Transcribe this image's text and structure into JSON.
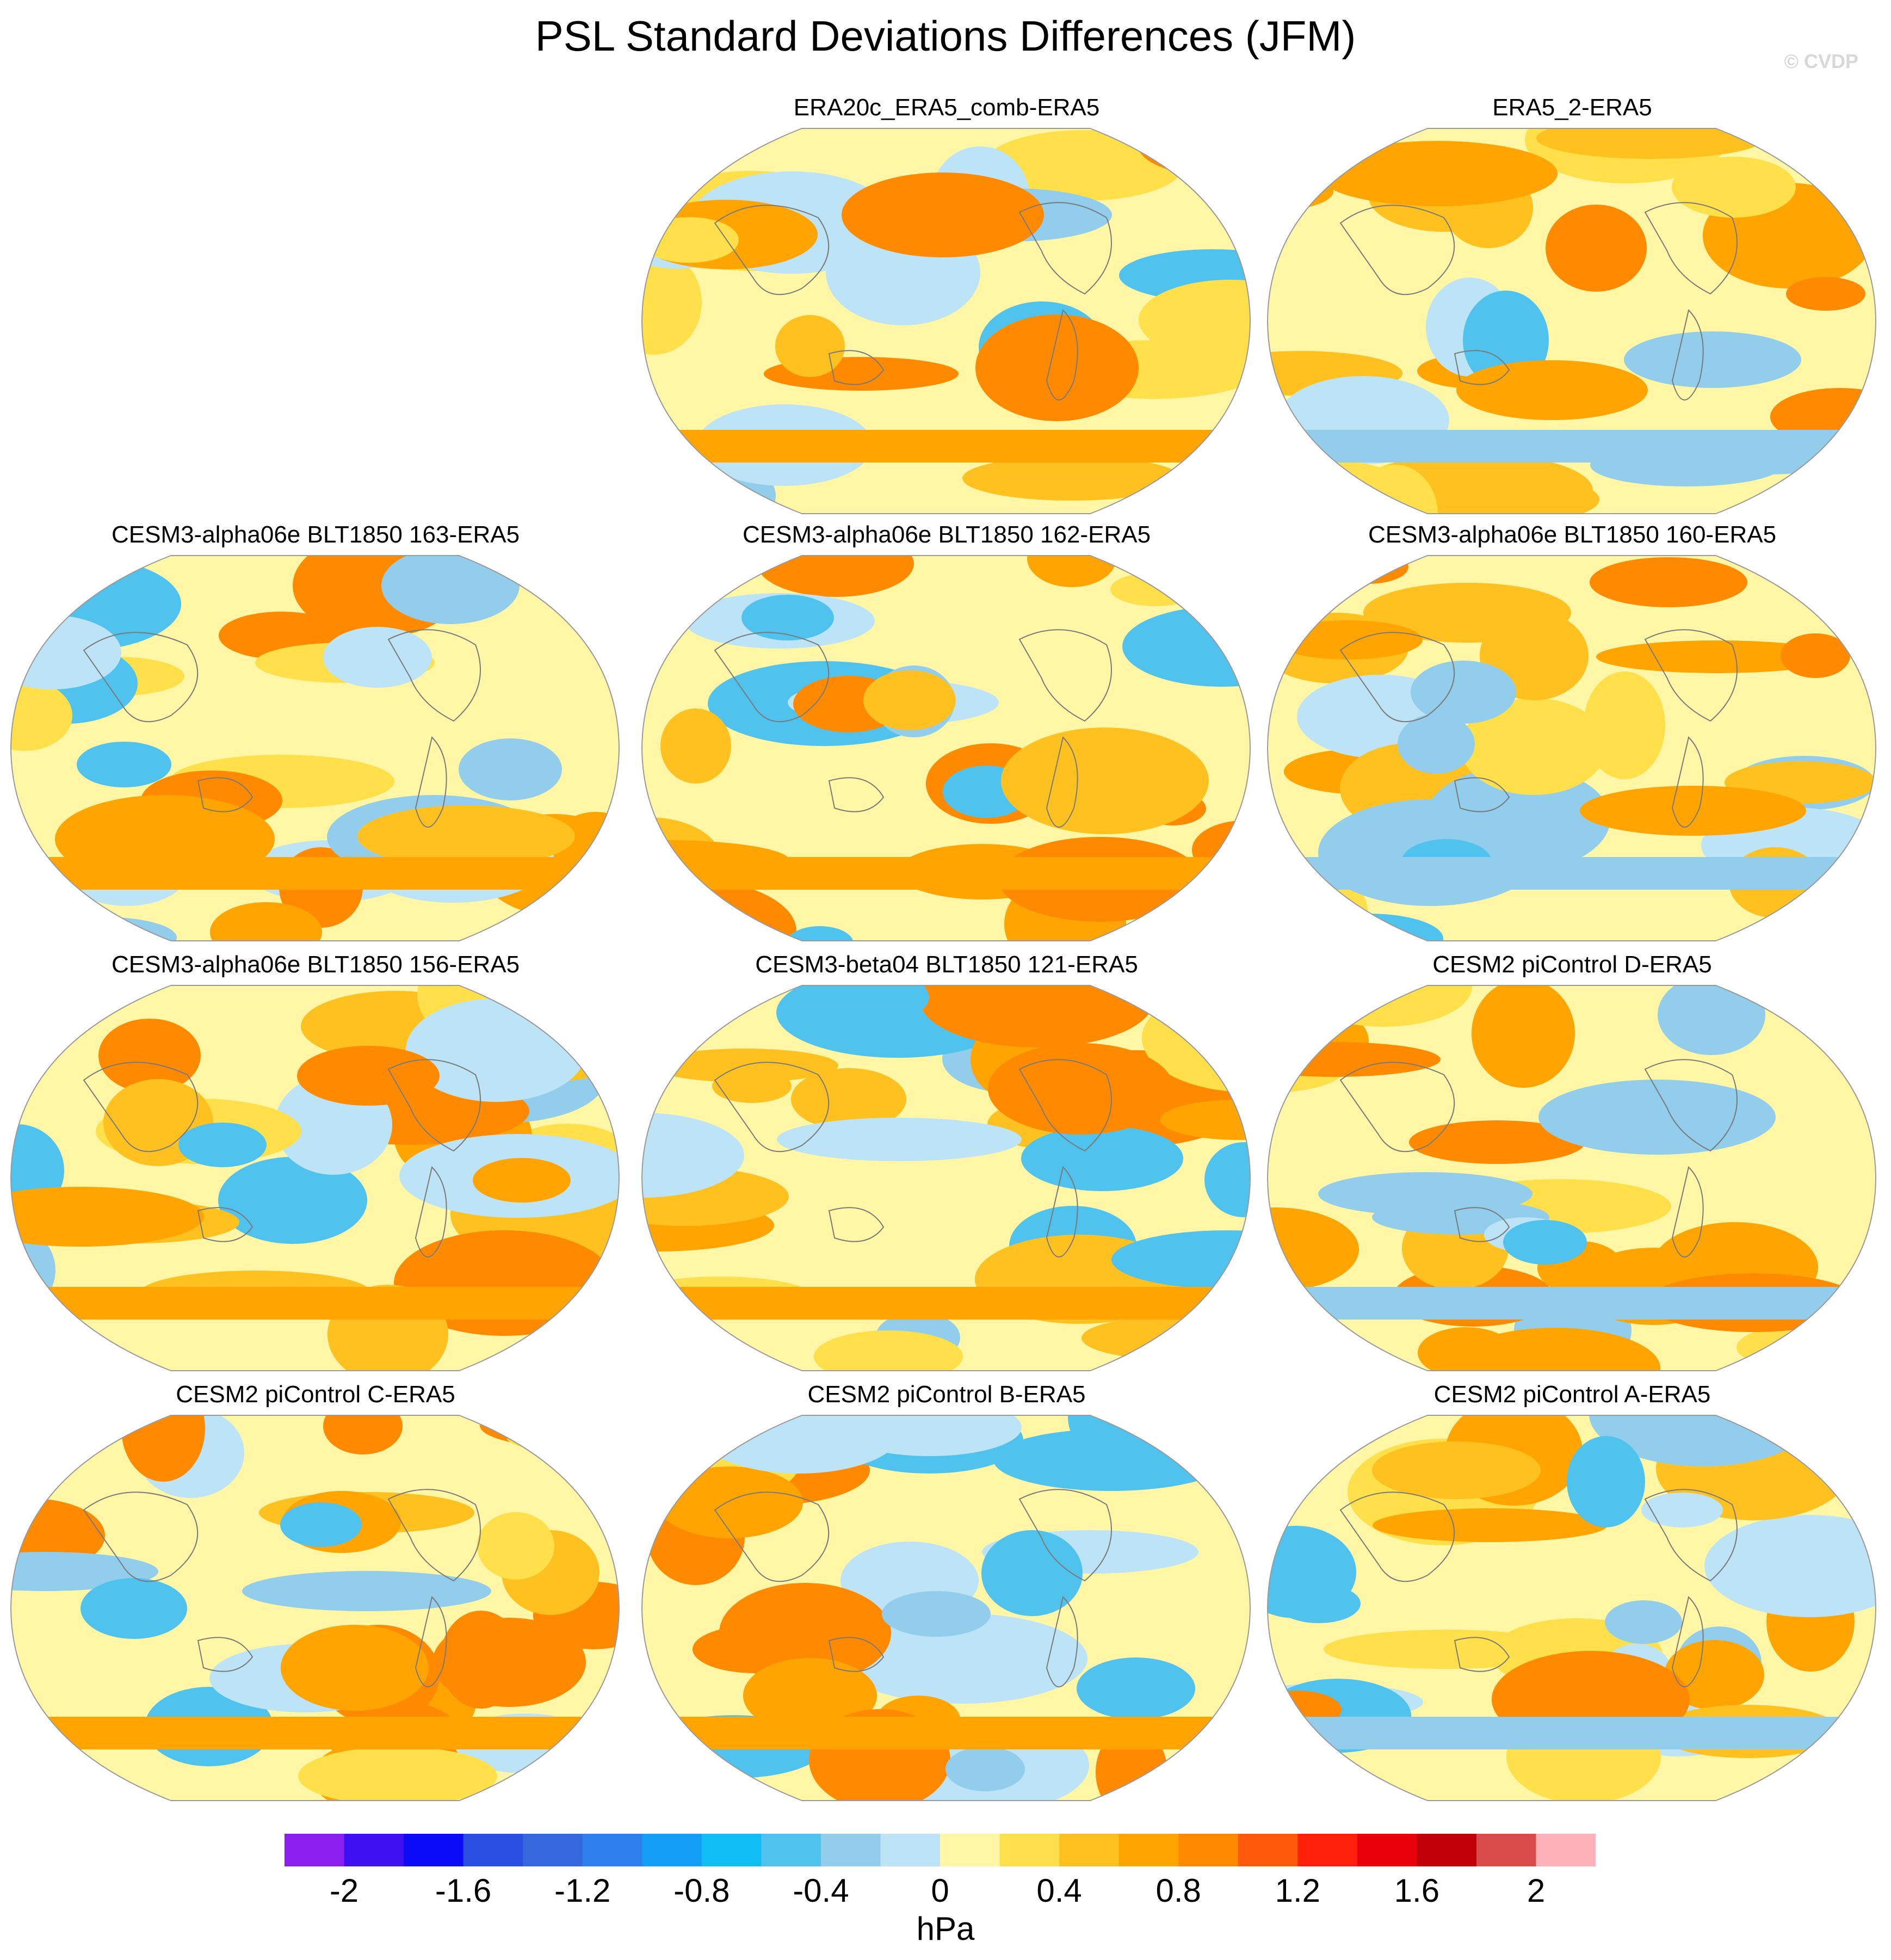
{
  "figure": {
    "title": "PSL Standard Deviations Differences (JFM)",
    "credit": "© CVDP"
  },
  "chart_data": {
    "type": "heatmap",
    "title": "PSL Standard Deviations Differences (JFM)",
    "projection": "Robinson global map",
    "units": "hPa",
    "panels": [
      {
        "label": "ERA20c_ERA5_comb-ERA5",
        "row": 1,
        "col": 2
      },
      {
        "label": "ERA5_2-ERA5",
        "row": 1,
        "col": 3
      },
      {
        "label": "CESM3-alpha06e BLT1850 163-ERA5",
        "row": 2,
        "col": 1
      },
      {
        "label": "CESM3-alpha06e BLT1850 162-ERA5",
        "row": 2,
        "col": 2
      },
      {
        "label": "CESM3-alpha06e BLT1850 160-ERA5",
        "row": 2,
        "col": 3
      },
      {
        "label": "CESM3-alpha06e BLT1850 156-ERA5",
        "row": 3,
        "col": 1
      },
      {
        "label": "CESM3-beta04 BLT1850 121-ERA5",
        "row": 3,
        "col": 2
      },
      {
        "label": "CESM2 piControl D-ERA5",
        "row": 3,
        "col": 3
      },
      {
        "label": "CESM2 piControl C-ERA5",
        "row": 4,
        "col": 1
      },
      {
        "label": "CESM2 piControl B-ERA5",
        "row": 4,
        "col": 2
      },
      {
        "label": "CESM2 piControl A-ERA5",
        "row": 4,
        "col": 3
      }
    ],
    "colorbar": {
      "levels": [
        -2.2,
        -2,
        -1.8,
        -1.6,
        -1.4,
        -1.2,
        -1,
        -0.8,
        -0.6,
        -0.4,
        -0.2,
        0,
        0.2,
        0.4,
        0.6,
        0.8,
        1,
        1.2,
        1.4,
        1.6,
        1.8,
        2,
        2.2
      ],
      "colors": [
        "#8a1ff0",
        "#3f10f2",
        "#0b0bf8",
        "#2a4fe0",
        "#3468dc",
        "#2d80ee",
        "#149ff6",
        "#10bdf4",
        "#4fc3ee",
        "#92cdec",
        "#bde3f6",
        "#fff7a6",
        "#ffe04a",
        "#ffc11f",
        "#ffa400",
        "#ff8a00",
        "#ff5a0c",
        "#ff200c",
        "#e8000a",
        "#c00006",
        "#d94a4a",
        "#ffb0b8"
      ],
      "tick_labels": [
        "-2",
        "-1.6",
        "-1.2",
        "-0.8",
        "-0.4",
        "0",
        "0.4",
        "0.8",
        "1.2",
        "1.6",
        "2"
      ],
      "tick_values": [
        -2,
        -1.6,
        -1.2,
        -0.8,
        -0.4,
        0,
        0.4,
        0.8,
        1.2,
        1.6,
        2
      ],
      "label": "hPa"
    }
  }
}
